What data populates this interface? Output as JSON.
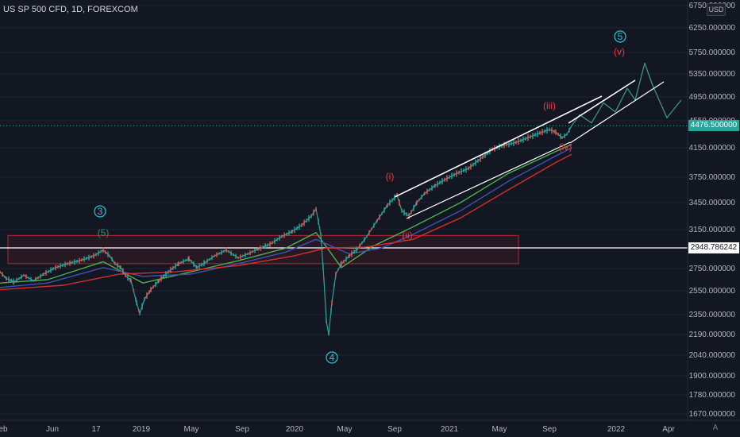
{
  "header": {
    "title": "US SP 500 CFD, 1D, FOREXCOM"
  },
  "currency_badge": "USD",
  "price_tags": {
    "current": "4476.500000",
    "level": "2948.786242"
  },
  "corner_label": "A",
  "chart_data": {
    "type": "line",
    "title": "US SP 500 CFD, 1D, FOREXCOM",
    "y_ticks": [
      "6750.000000",
      "6250.000000",
      "5750.000000",
      "5350.000000",
      "4950.000000",
      "4550.000000",
      "4150.000000",
      "3750.000000",
      "3450.000000",
      "3150.000000",
      "2750.000000",
      "2550.000000",
      "2350.000000",
      "2190.000000",
      "2040.000000",
      "1900.000000",
      "1780.000000",
      "1670.000000"
    ],
    "x_ticks": [
      "eb",
      "Jun",
      "17",
      "2019",
      "May",
      "Sep",
      "2020",
      "May",
      "Sep",
      "2021",
      "May",
      "Sep",
      "2022",
      "Apr"
    ],
    "series": [
      {
        "points": [
          [
            0,
            2720
          ],
          [
            8,
            2660
          ],
          [
            18,
            2630
          ],
          [
            30,
            2690
          ],
          [
            42,
            2640
          ],
          [
            55,
            2700
          ],
          [
            70,
            2760
          ],
          [
            85,
            2800
          ],
          [
            100,
            2830
          ],
          [
            118,
            2880
          ],
          [
            130,
            2940
          ],
          [
            138,
            2880
          ],
          [
            145,
            2800
          ],
          [
            152,
            2760
          ],
          [
            158,
            2690
          ],
          [
            165,
            2640
          ],
          [
            172,
            2450
          ],
          [
            176,
            2360
          ],
          [
            182,
            2480
          ],
          [
            190,
            2560
          ],
          [
            200,
            2640
          ],
          [
            212,
            2720
          ],
          [
            225,
            2800
          ],
          [
            238,
            2850
          ],
          [
            248,
            2760
          ],
          [
            258,
            2810
          ],
          [
            270,
            2880
          ],
          [
            285,
            2940
          ],
          [
            300,
            2860
          ],
          [
            312,
            2900
          ],
          [
            325,
            2950
          ],
          [
            340,
            3000
          ],
          [
            355,
            3080
          ],
          [
            368,
            3130
          ],
          [
            380,
            3200
          ],
          [
            392,
            3300
          ],
          [
            398,
            3380
          ],
          [
            404,
            3100
          ],
          [
            408,
            2650
          ],
          [
            411,
            2300
          ],
          [
            414,
            2190
          ],
          [
            418,
            2450
          ],
          [
            423,
            2700
          ],
          [
            430,
            2800
          ],
          [
            440,
            2880
          ],
          [
            450,
            2950
          ],
          [
            462,
            3080
          ],
          [
            475,
            3250
          ],
          [
            488,
            3420
          ],
          [
            500,
            3540
          ],
          [
            506,
            3360
          ],
          [
            515,
            3300
          ],
          [
            525,
            3450
          ],
          [
            535,
            3560
          ],
          [
            548,
            3650
          ],
          [
            560,
            3720
          ],
          [
            575,
            3800
          ],
          [
            590,
            3870
          ],
          [
            605,
            4000
          ],
          [
            620,
            4130
          ],
          [
            635,
            4190
          ],
          [
            650,
            4230
          ],
          [
            665,
            4300
          ],
          [
            680,
            4370
          ],
          [
            692,
            4420
          ],
          [
            700,
            4380
          ],
          [
            708,
            4300
          ],
          [
            714,
            4350
          ],
          [
            720,
            4476
          ]
        ]
      },
      {
        "points": [
          [
            0,
            2620
          ],
          [
            60,
            2650
          ],
          [
            130,
            2820
          ],
          [
            180,
            2620
          ],
          [
            240,
            2720
          ],
          [
            300,
            2830
          ],
          [
            360,
            2960
          ],
          [
            398,
            3120
          ],
          [
            430,
            2760
          ],
          [
            470,
            2980
          ],
          [
            520,
            3180
          ],
          [
            580,
            3450
          ],
          [
            640,
            3800
          ],
          [
            700,
            4100
          ],
          [
            720,
            4200
          ]
        ]
      },
      {
        "points": [
          [
            0,
            2580
          ],
          [
            60,
            2620
          ],
          [
            130,
            2760
          ],
          [
            180,
            2680
          ],
          [
            240,
            2700
          ],
          [
            300,
            2800
          ],
          [
            360,
            2920
          ],
          [
            398,
            3050
          ],
          [
            440,
            2900
          ],
          [
            480,
            2960
          ],
          [
            520,
            3100
          ],
          [
            580,
            3360
          ],
          [
            640,
            3700
          ],
          [
            700,
            4040
          ],
          [
            720,
            4150
          ]
        ]
      },
      {
        "points": [
          [
            0,
            2560
          ],
          [
            80,
            2600
          ],
          [
            150,
            2700
          ],
          [
            220,
            2720
          ],
          [
            300,
            2780
          ],
          [
            370,
            2880
          ],
          [
            410,
            2960
          ],
          [
            460,
            2970
          ],
          [
            520,
            3050
          ],
          [
            580,
            3280
          ],
          [
            640,
            3600
          ],
          [
            700,
            3950
          ],
          [
            720,
            4060
          ]
        ]
      },
      {
        "points": [
          [
            720,
            4476
          ],
          [
            730,
            4650
          ],
          [
            745,
            4520
          ],
          [
            760,
            4850
          ],
          [
            775,
            4700
          ],
          [
            790,
            5100
          ],
          [
            800,
            4900
          ],
          [
            812,
            5550
          ],
          [
            822,
            5150
          ],
          [
            840,
            4600
          ],
          [
            858,
            4900
          ]
        ]
      }
    ],
    "price_line": 2948.786242,
    "current_price": 4476.5,
    "zone": {
      "from": 2800,
      "to": 3090
    },
    "wave_labels": [
      {
        "text": "3",
        "circled": true
      },
      {
        "text": "(5)"
      },
      {
        "text": "4",
        "circled": true
      },
      {
        "text": "(i)"
      },
      {
        "text": "(ii)"
      },
      {
        "text": "(iii)"
      },
      {
        "text": "(iv)"
      },
      {
        "text": "(v)"
      },
      {
        "text": "5",
        "circled": true
      }
    ],
    "colors": {
      "background": "#131722",
      "price": "#26a69a",
      "ma_fast": "#4caf50",
      "ma_mid": "#3f51b5",
      "ma_slow": "#d32f2f",
      "projection": "#3e9c8c",
      "wave_green": "#26c6da",
      "wave_red": "#f23645",
      "zone": "#b22833",
      "trendline": "#ffffff"
    }
  }
}
